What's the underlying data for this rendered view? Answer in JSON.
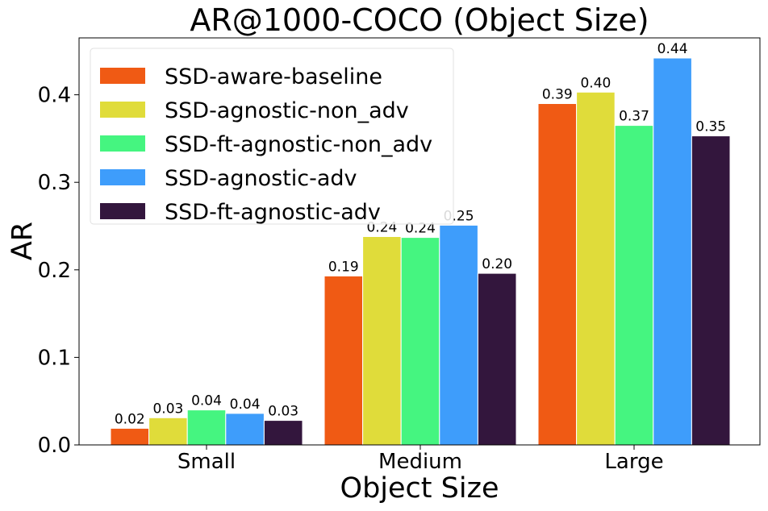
{
  "chart_data": {
    "type": "bar",
    "title": "AR@1000-COCO (Object Size)",
    "xlabel": "Object Size",
    "ylabel": "AR",
    "categories": [
      "Small",
      "Medium",
      "Large"
    ],
    "ylim": [
      0.0,
      0.465
    ],
    "yticks": [
      0.0,
      0.1,
      0.2,
      0.3,
      0.4
    ],
    "ytick_labels": [
      "0.0",
      "0.1",
      "0.2",
      "0.3",
      "0.4"
    ],
    "legend_position": "top-left",
    "series": [
      {
        "name": "SSD-aware-baseline",
        "color": "#F05A14",
        "values": [
          0.019,
          0.193,
          0.39
        ],
        "labels": [
          "0.02",
          "0.19",
          "0.39"
        ]
      },
      {
        "name": "SSD-agnostic-non_adv",
        "color": "#E0DC3A",
        "values": [
          0.031,
          0.238,
          0.403
        ],
        "labels": [
          "0.03",
          "0.24",
          "0.40"
        ]
      },
      {
        "name": "SSD-ft-agnostic-non_adv",
        "color": "#45F580",
        "values": [
          0.04,
          0.237,
          0.365
        ],
        "labels": [
          "0.04",
          "0.24",
          "0.37"
        ]
      },
      {
        "name": "SSD-agnostic-adv",
        "color": "#3E9DFB",
        "values": [
          0.036,
          0.251,
          0.442
        ],
        "labels": [
          "0.04",
          "0.25",
          "0.44"
        ]
      },
      {
        "name": "SSD-ft-agnostic-adv",
        "color": "#33163D",
        "values": [
          0.028,
          0.196,
          0.353
        ],
        "labels": [
          "0.03",
          "0.20",
          "0.35"
        ]
      }
    ]
  }
}
